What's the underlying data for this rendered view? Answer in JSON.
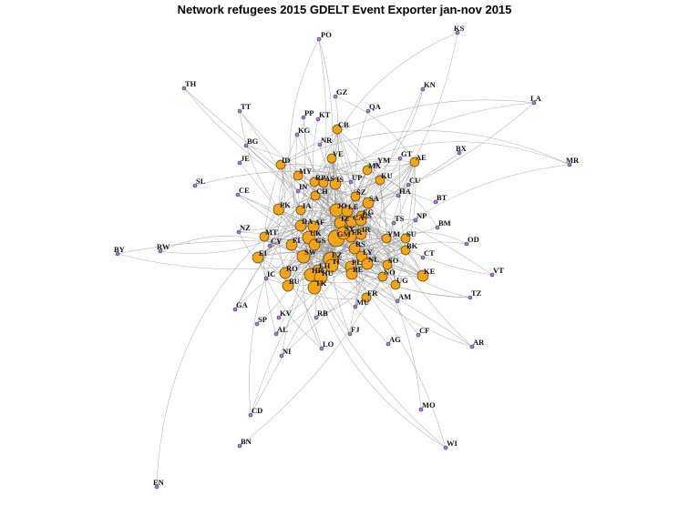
{
  "title": "Network refugees 2015 GDELT Event Exporter jan-nov 2015",
  "colors": {
    "hub_node": "#f2a516",
    "leaf_node": "#b07ac8",
    "edge": "#9a9a9a"
  },
  "nodes": [
    {
      "id": "PO",
      "type": "leaf"
    },
    {
      "id": "KS",
      "type": "leaf"
    },
    {
      "id": "KN",
      "type": "leaf"
    },
    {
      "id": "LA",
      "type": "leaf"
    },
    {
      "id": "TH",
      "type": "leaf"
    },
    {
      "id": "GZ",
      "type": "leaf"
    },
    {
      "id": "TT",
      "type": "leaf"
    },
    {
      "id": "PP",
      "type": "leaf"
    },
    {
      "id": "KT",
      "type": "leaf"
    },
    {
      "id": "QA",
      "type": "leaf"
    },
    {
      "id": "CB",
      "type": "hub"
    },
    {
      "id": "KG",
      "type": "leaf"
    },
    {
      "id": "BG",
      "type": "leaf"
    },
    {
      "id": "NR",
      "type": "leaf"
    },
    {
      "id": "BX",
      "type": "leaf"
    },
    {
      "id": "JE",
      "type": "leaf"
    },
    {
      "id": "ID",
      "type": "hub"
    },
    {
      "id": "VE",
      "type": "hub"
    },
    {
      "id": "MX",
      "type": "hub"
    },
    {
      "id": "YM",
      "type": "leaf"
    },
    {
      "id": "GT",
      "type": "leaf"
    },
    {
      "id": "AE",
      "type": "hub"
    },
    {
      "id": "MR",
      "type": "leaf"
    },
    {
      "id": "MY",
      "type": "hub"
    },
    {
      "id": "RP",
      "type": "hub"
    },
    {
      "id": "AS",
      "type": "hub"
    },
    {
      "id": "IS",
      "type": "hub"
    },
    {
      "id": "UP",
      "type": "leaf"
    },
    {
      "id": "KU",
      "type": "hub"
    },
    {
      "id": "SL",
      "type": "leaf"
    },
    {
      "id": "IN",
      "type": "leaf"
    },
    {
      "id": "CU",
      "type": "leaf"
    },
    {
      "id": "CE",
      "type": "leaf"
    },
    {
      "id": "CH",
      "type": "hub"
    },
    {
      "id": "SZ",
      "type": "hub"
    },
    {
      "id": "HA",
      "type": "leaf"
    },
    {
      "id": "BT",
      "type": "leaf"
    },
    {
      "id": "SA",
      "type": "hub"
    },
    {
      "id": "PK",
      "type": "hub"
    },
    {
      "id": "JA",
      "type": "hub"
    },
    {
      "id": "JO",
      "type": "hub"
    },
    {
      "id": "LE",
      "type": "hub"
    },
    {
      "id": "EG",
      "type": "hub"
    },
    {
      "id": "TS",
      "type": "leaf"
    },
    {
      "id": "NP",
      "type": "leaf"
    },
    {
      "id": "CA",
      "type": "hub"
    },
    {
      "id": "US",
      "type": "hub"
    },
    {
      "id": "IZ",
      "type": "hub"
    },
    {
      "id": "DA",
      "type": "hub"
    },
    {
      "id": "AF",
      "type": "hub"
    },
    {
      "id": "BM",
      "type": "leaf"
    },
    {
      "id": "NZ",
      "type": "leaf"
    },
    {
      "id": "MT",
      "type": "hub"
    },
    {
      "id": "IR",
      "type": "hub"
    },
    {
      "id": "FR",
      "type": "hub"
    },
    {
      "id": "YM2",
      "label": "YM",
      "type": "hub"
    },
    {
      "id": "SU",
      "type": "hub"
    },
    {
      "id": "UK",
      "type": "hub"
    },
    {
      "id": "GM",
      "type": "hub"
    },
    {
      "id": "SY",
      "type": "hub"
    },
    {
      "id": "OD",
      "type": "leaf"
    },
    {
      "id": "CY",
      "type": "leaf"
    },
    {
      "id": "FI",
      "type": "hub"
    },
    {
      "id": "GS",
      "type": "hub"
    },
    {
      "id": "RS",
      "type": "hub"
    },
    {
      "id": "BK",
      "type": "hub"
    },
    {
      "id": "BY",
      "type": "leaf"
    },
    {
      "id": "RW",
      "type": "leaf"
    },
    {
      "id": "EI",
      "type": "hub"
    },
    {
      "id": "SW",
      "type": "hub"
    },
    {
      "id": "EZ",
      "type": "hub"
    },
    {
      "id": "LY",
      "type": "hub"
    },
    {
      "id": "CT",
      "type": "leaf"
    },
    {
      "id": "NL",
      "type": "hub"
    },
    {
      "id": "LH",
      "type": "hub"
    },
    {
      "id": "IT",
      "type": "hub"
    },
    {
      "id": "PL",
      "type": "hub"
    },
    {
      "id": "SO",
      "type": "hub"
    },
    {
      "id": "VT",
      "type": "leaf"
    },
    {
      "id": "IC",
      "type": "leaf"
    },
    {
      "id": "RO",
      "type": "hub"
    },
    {
      "id": "HR",
      "type": "hub"
    },
    {
      "id": "BE",
      "type": "hub"
    },
    {
      "id": "NO",
      "type": "hub"
    },
    {
      "id": "KE",
      "type": "hub"
    },
    {
      "id": "BU",
      "type": "hub"
    },
    {
      "id": "HU",
      "type": "hub"
    },
    {
      "id": "TK",
      "type": "hub"
    },
    {
      "id": "UG",
      "type": "hub"
    },
    {
      "id": "TZ",
      "type": "leaf"
    },
    {
      "id": "FR2",
      "label": "FR",
      "type": "hub"
    },
    {
      "id": "AM",
      "type": "leaf"
    },
    {
      "id": "GA",
      "type": "leaf"
    },
    {
      "id": "MU",
      "type": "leaf"
    },
    {
      "id": "RB",
      "type": "leaf"
    },
    {
      "id": "KV",
      "type": "leaf"
    },
    {
      "id": "SP",
      "type": "leaf"
    },
    {
      "id": "FJ",
      "type": "leaf"
    },
    {
      "id": "CF",
      "type": "leaf"
    },
    {
      "id": "AL",
      "type": "leaf"
    },
    {
      "id": "AG",
      "type": "leaf"
    },
    {
      "id": "AR",
      "type": "leaf"
    },
    {
      "id": "LO",
      "type": "leaf"
    },
    {
      "id": "NI",
      "type": "leaf"
    },
    {
      "id": "MO",
      "type": "leaf"
    },
    {
      "id": "CD",
      "type": "leaf"
    },
    {
      "id": "BN",
      "type": "leaf"
    },
    {
      "id": "WI",
      "type": "leaf"
    },
    {
      "id": "EN",
      "type": "leaf"
    }
  ]
}
